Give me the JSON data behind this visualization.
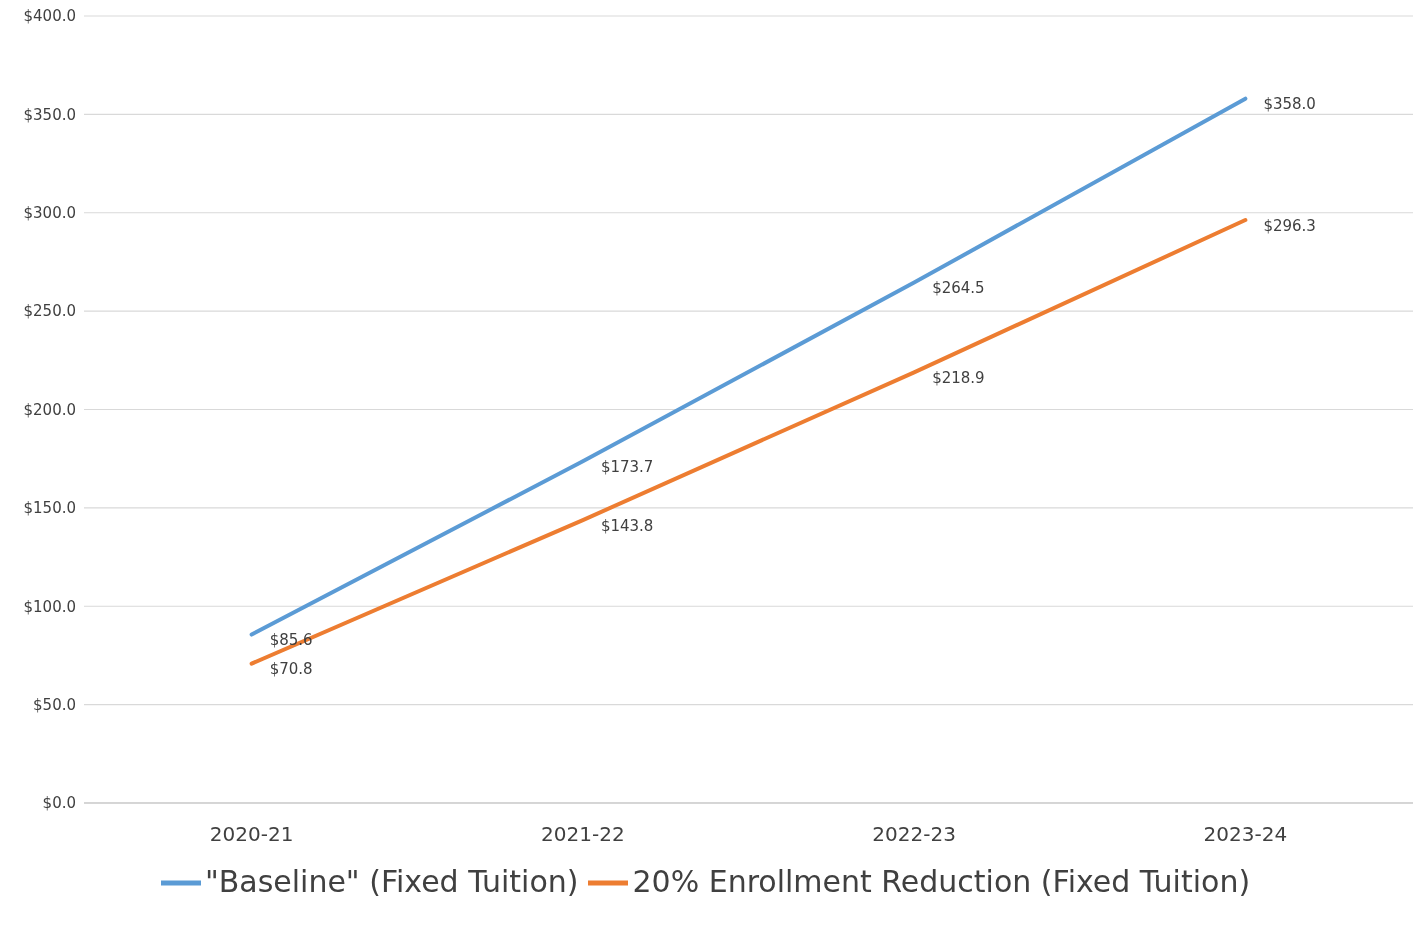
{
  "chart_data": {
    "type": "line",
    "categories": [
      "2020-21",
      "2021-22",
      "2022-23",
      "2023-24"
    ],
    "series": [
      {
        "name": "\"Baseline\" (Fixed Tuition)",
        "color": "#5b9bd5",
        "values": [
          85.6,
          173.7,
          264.5,
          358.0
        ],
        "value_labels": [
          "$85.6",
          "$173.7",
          "$264.5",
          "$358.0"
        ]
      },
      {
        "name": "20% Enrollment Reduction (Fixed Tuition)",
        "color": "#ed7d31",
        "values": [
          70.8,
          143.8,
          218.9,
          296.3
        ],
        "value_labels": [
          "$70.8",
          "$143.8",
          "$218.9",
          "$296.3"
        ]
      }
    ],
    "ylim": [
      0,
      400
    ],
    "yticks": [
      {
        "value": 0,
        "label": "$0.0"
      },
      {
        "value": 50,
        "label": "$50.0"
      },
      {
        "value": 100,
        "label": "$100.0"
      },
      {
        "value": 150,
        "label": "$150.0"
      },
      {
        "value": 200,
        "label": "$200.0"
      },
      {
        "value": 250,
        "label": "$250.0"
      },
      {
        "value": 300,
        "label": "$300.0"
      },
      {
        "value": 350,
        "label": "$350.0"
      },
      {
        "value": 400,
        "label": "$400.0"
      }
    ],
    "grid": "y",
    "legend": "bottom",
    "marker": "none",
    "line_style": "solid"
  }
}
